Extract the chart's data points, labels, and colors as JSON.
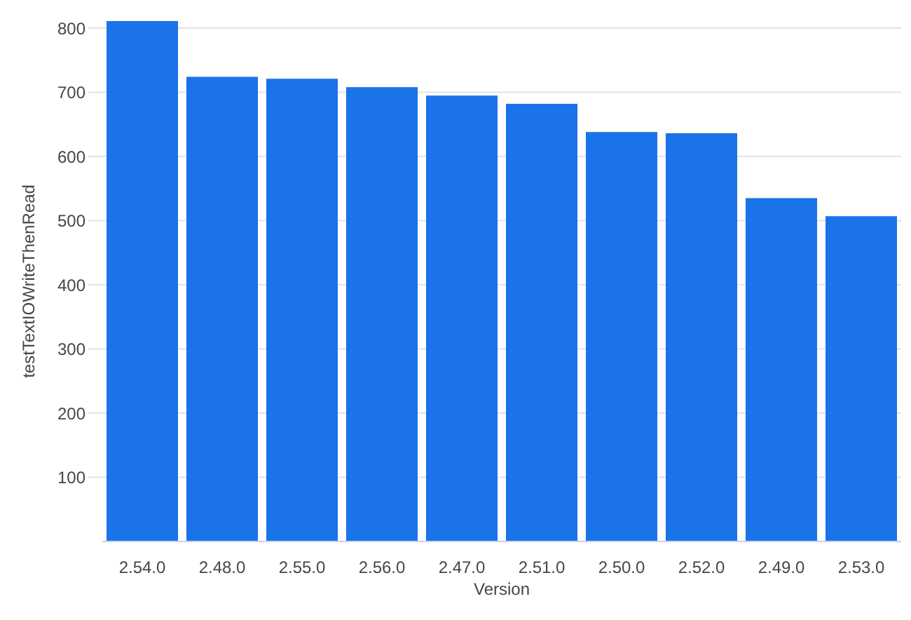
{
  "chart_data": {
    "type": "bar",
    "xlabel": "Version",
    "ylabel": "testTextIOWriteThenRead",
    "categories": [
      "2.54.0",
      "2.48.0",
      "2.55.0",
      "2.56.0",
      "2.47.0",
      "2.51.0",
      "2.50.0",
      "2.52.0",
      "2.49.0",
      "2.53.0"
    ],
    "values": [
      811,
      724,
      721,
      708,
      695,
      682,
      638,
      636,
      535,
      507
    ],
    "color": "#1a73e8",
    "ylim": [
      0,
      811
    ],
    "yticks": [
      100,
      200,
      300,
      400,
      500,
      600,
      700,
      800
    ],
    "grid": "y"
  }
}
